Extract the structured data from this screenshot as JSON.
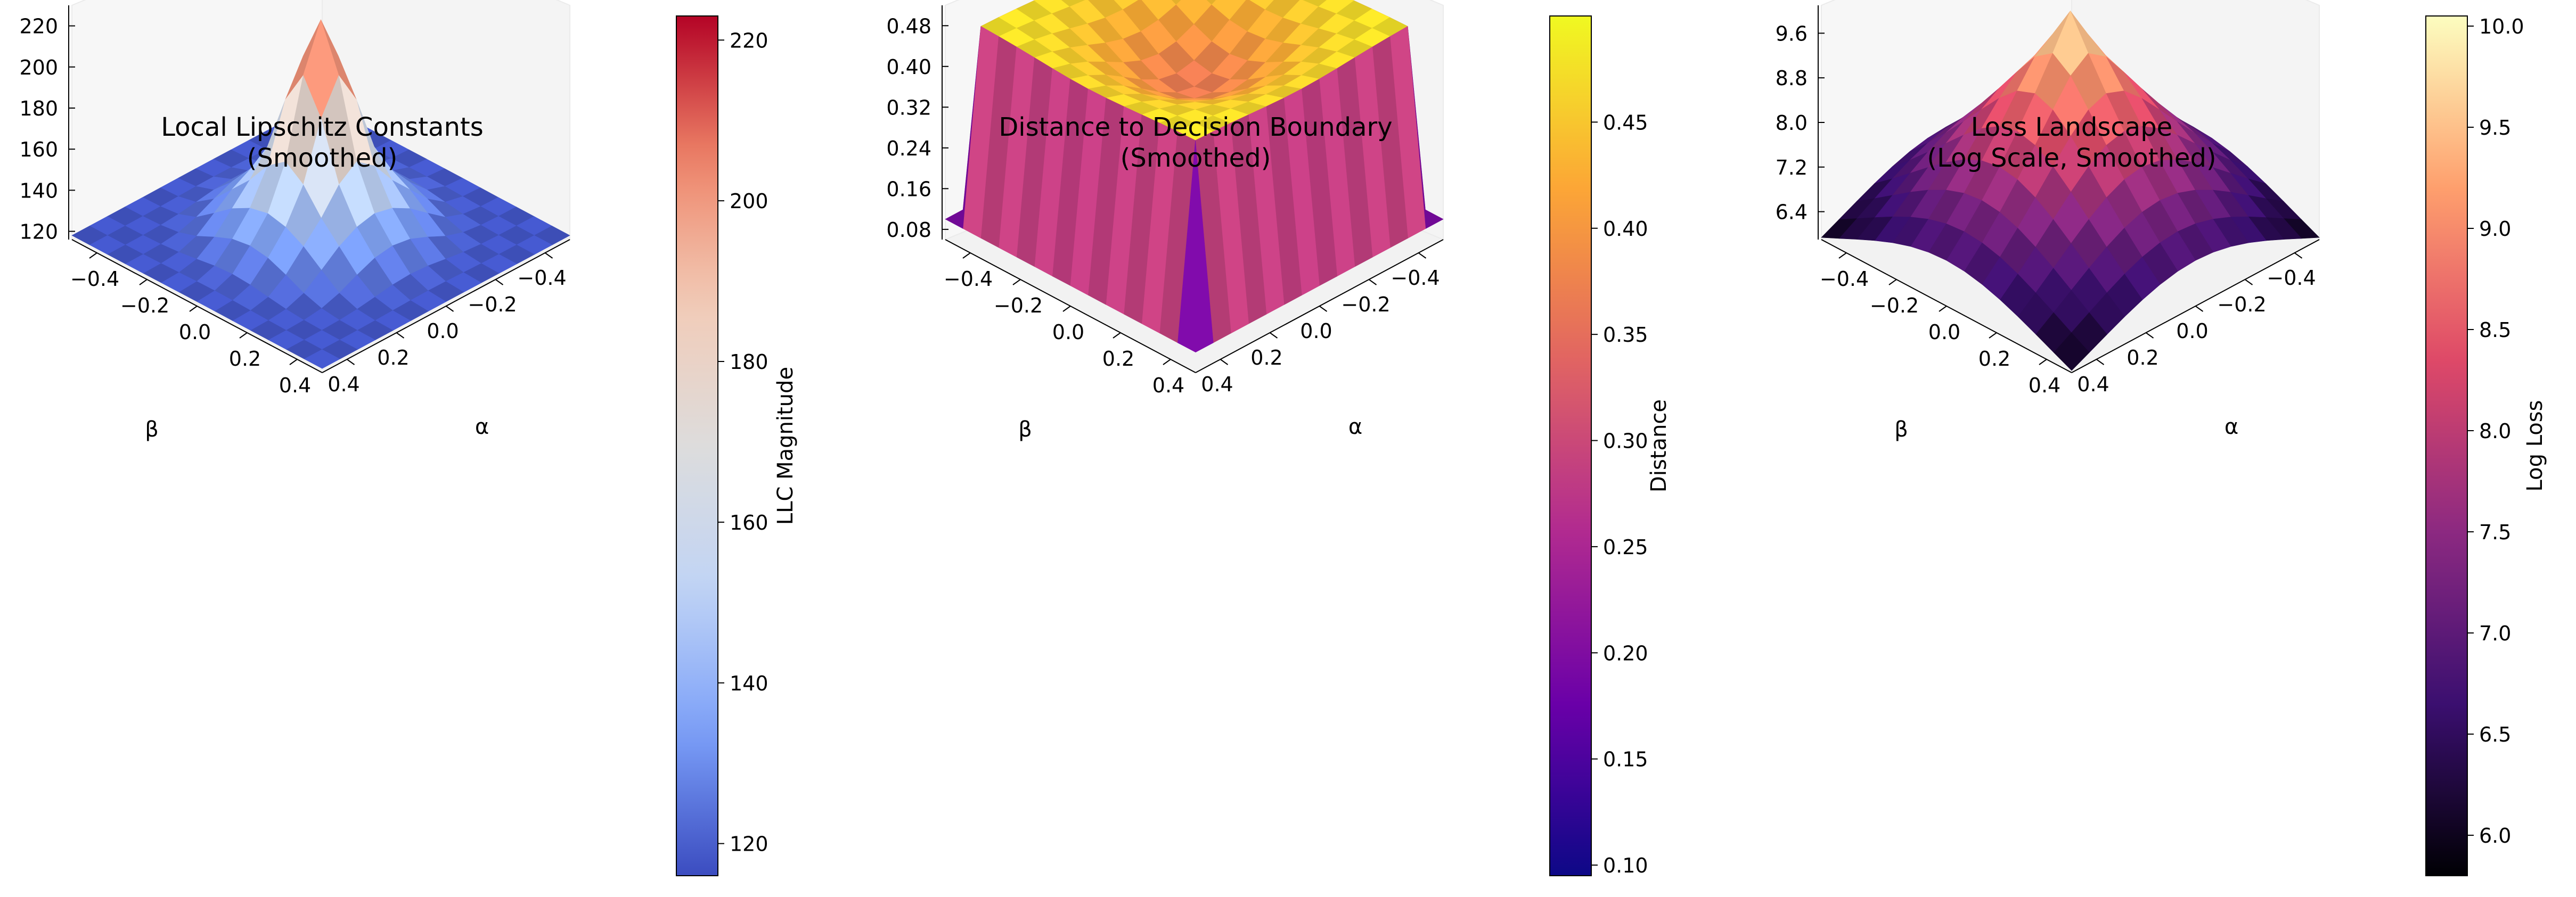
{
  "chart_data": [
    {
      "type": "surface3d",
      "title": "Local Lipschitz Constants\n(Smoothed)",
      "xlabel": "α",
      "ylabel": "β",
      "x_ticks": [
        "−0.4",
        "−0.2",
        "0.0",
        "0.2",
        "0.4"
      ],
      "y_ticks": [
        "−0.4",
        "−0.2",
        "0.0",
        "0.2",
        "0.4"
      ],
      "z_ticks": [
        "120",
        "140",
        "160",
        "180",
        "200",
        "220"
      ],
      "zlim": [
        116,
        230
      ],
      "colormap": "coolwarm",
      "colormap_stops": [
        "#3b4cc0",
        "#7b9ff9",
        "#c0d4f5",
        "#dddcdc",
        "#f2cbb7",
        "#ee8468",
        "#b40426"
      ],
      "colorbar": {
        "label": "LLC Magnitude",
        "min": 116,
        "max": 223,
        "ticks": [
          "120",
          "140",
          "160",
          "180",
          "200",
          "220"
        ],
        "tick_values": [
          120,
          140,
          160,
          180,
          200,
          220
        ]
      },
      "surface_model": {
        "shape": "peak",
        "base": 118,
        "plateau": 140,
        "peak": 223
      }
    },
    {
      "type": "surface3d",
      "title": "Distance to Decision Boundary\n(Smoothed)",
      "xlabel": "α",
      "ylabel": "β",
      "x_ticks": [
        "−0.4",
        "−0.2",
        "0.0",
        "0.2",
        "0.4"
      ],
      "y_ticks": [
        "−0.4",
        "−0.2",
        "0.0",
        "0.2",
        "0.4"
      ],
      "z_ticks": [
        "0.08",
        "0.16",
        "0.24",
        "0.32",
        "0.40",
        "0.48"
      ],
      "zlim": [
        0.06,
        0.52
      ],
      "colormap": "plasma",
      "colormap_stops": [
        "#0d0887",
        "#6a00a8",
        "#b12a90",
        "#e16462",
        "#fca636",
        "#f0f921"
      ],
      "colorbar": {
        "label": "Distance",
        "min": 0.095,
        "max": 0.5,
        "ticks": [
          "0.10",
          "0.15",
          "0.20",
          "0.25",
          "0.30",
          "0.35",
          "0.40",
          "0.45"
        ],
        "tick_values": [
          0.1,
          0.15,
          0.2,
          0.25,
          0.3,
          0.35,
          0.4,
          0.45
        ]
      },
      "surface_model": {
        "shape": "mesa",
        "edge": 0.1,
        "rim": 0.48,
        "center": 0.36
      }
    },
    {
      "type": "surface3d",
      "title": "Loss Landscape\n(Log Scale, Smoothed)",
      "xlabel": "α",
      "ylabel": "β",
      "x_ticks": [
        "−0.4",
        "−0.2",
        "0.0",
        "0.2",
        "0.4"
      ],
      "y_ticks": [
        "−0.4",
        "−0.2",
        "0.0",
        "0.2",
        "0.4"
      ],
      "z_ticks": [
        "6.4",
        "7.2",
        "8.0",
        "8.8",
        "9.6"
      ],
      "zlim": [
        5.9,
        10.1
      ],
      "colormap": "magma",
      "colormap_stops": [
        "#000004",
        "#3b0f70",
        "#8c2981",
        "#de4968",
        "#fe9f6d",
        "#fcfdbf"
      ],
      "colorbar": {
        "label": "Log Loss",
        "min": 5.8,
        "max": 10.05,
        "ticks": [
          "6.0",
          "6.5",
          "7.0",
          "7.5",
          "8.0",
          "8.5",
          "9.0",
          "9.5",
          "10.0"
        ],
        "tick_values": [
          6.0,
          6.5,
          7.0,
          7.5,
          8.0,
          8.5,
          9.0,
          9.5,
          10.0
        ]
      },
      "surface_model": {
        "shape": "pyramid",
        "base": 5.9,
        "peak": 10.0
      }
    }
  ]
}
